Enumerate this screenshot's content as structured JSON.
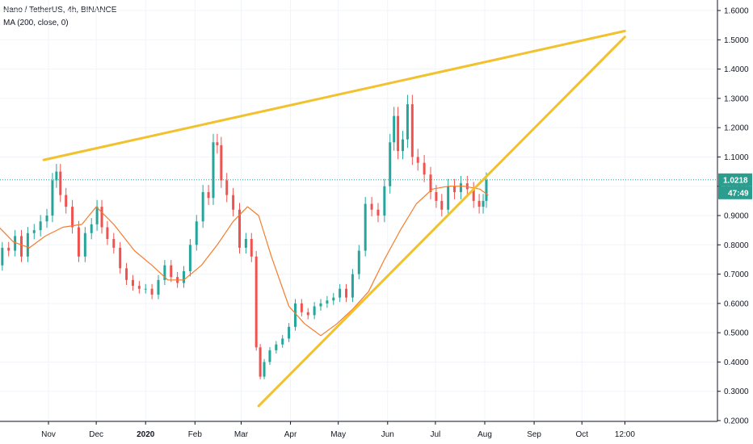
{
  "header": {
    "symbol_line": "Nano / TetherUS, 4h, BINANCE",
    "indicator_line": "MA (200, close, 0)"
  },
  "price_label": "1.0218",
  "countdown_label": "47:49",
  "colors": {
    "up": "#26a69a",
    "down": "#ef5350",
    "ma": "#f57c2b",
    "trendline": "#f2c12e",
    "last_price": "#2a9d8f",
    "axis": "#131722",
    "grid": "#f0f3fa"
  },
  "chart_data": {
    "type": "line",
    "title": "Nano / TetherUS, 4h, BINANCE",
    "xlabel": "",
    "ylabel": "",
    "ylim": [
      0.2,
      1.6
    ],
    "y_ticks": [
      "1.6000",
      "1.5000",
      "1.4000",
      "1.3000",
      "1.2000",
      "1.1000",
      "1.0000",
      "0.9000",
      "0.8000",
      "0.7000",
      "0.6000",
      "0.5000",
      "0.4000",
      "0.3000",
      "0.2000"
    ],
    "x_ticks": [
      {
        "label": "Nov",
        "date": "2019-11-01"
      },
      {
        "label": "Dec",
        "date": "2019-12-01"
      },
      {
        "label": "2020",
        "date": "2020-01-01",
        "bold": true
      },
      {
        "label": "Feb",
        "date": "2020-02-01"
      },
      {
        "label": "Mar",
        "date": "2020-03-01"
      },
      {
        "label": "Apr",
        "date": "2020-04-01"
      },
      {
        "label": "May",
        "date": "2020-05-01"
      },
      {
        "label": "Jun",
        "date": "2020-06-01"
      },
      {
        "label": "Jul",
        "date": "2020-07-01"
      },
      {
        "label": "Aug",
        "date": "2020-08-01"
      },
      {
        "label": "Sep",
        "date": "2020-09-01"
      },
      {
        "label": "Oct",
        "date": "2020-10-01"
      },
      {
        "label": "12:00",
        "date": "2020-10-28"
      }
    ],
    "last_price": 1.0218,
    "series": [
      {
        "name": "Nano / TetherUS, 4h, BINANCE",
        "kind": "price",
        "points": [
          [
            "2019-10-01",
            0.73
          ],
          [
            "2019-10-05",
            0.79
          ],
          [
            "2019-10-09",
            0.78
          ],
          [
            "2019-10-13",
            0.83
          ],
          [
            "2019-10-17",
            0.76
          ],
          [
            "2019-10-21",
            0.84
          ],
          [
            "2019-10-25",
            0.85
          ],
          [
            "2019-10-29",
            0.88
          ],
          [
            "2019-11-02",
            0.9
          ],
          [
            "2019-11-05",
            1.02
          ],
          [
            "2019-11-07",
            1.05
          ],
          [
            "2019-11-10",
            0.97
          ],
          [
            "2019-11-14",
            0.93
          ],
          [
            "2019-11-18",
            0.86
          ],
          [
            "2019-11-22",
            0.76
          ],
          [
            "2019-11-26",
            0.84
          ],
          [
            "2019-11-30",
            0.87
          ],
          [
            "2019-12-03",
            0.93
          ],
          [
            "2019-12-06",
            0.86
          ],
          [
            "2019-12-10",
            0.82
          ],
          [
            "2019-12-14",
            0.79
          ],
          [
            "2019-12-18",
            0.72
          ],
          [
            "2019-12-22",
            0.68
          ],
          [
            "2019-12-26",
            0.66
          ],
          [
            "2019-12-30",
            0.65
          ],
          [
            "2020-01-03",
            0.65
          ],
          [
            "2020-01-07",
            0.63
          ],
          [
            "2020-01-11",
            0.68
          ],
          [
            "2020-01-15",
            0.73
          ],
          [
            "2020-01-19",
            0.69
          ],
          [
            "2020-01-23",
            0.67
          ],
          [
            "2020-01-27",
            0.71
          ],
          [
            "2020-01-31",
            0.8
          ],
          [
            "2020-02-04",
            0.88
          ],
          [
            "2020-02-08",
            0.98
          ],
          [
            "2020-02-11",
            0.96
          ],
          [
            "2020-02-14",
            1.15
          ],
          [
            "2020-02-16",
            1.14
          ],
          [
            "2020-02-19",
            1.02
          ],
          [
            "2020-02-23",
            0.97
          ],
          [
            "2020-02-27",
            0.92
          ],
          [
            "2020-03-02",
            0.79
          ],
          [
            "2020-03-06",
            0.82
          ],
          [
            "2020-03-09",
            0.76
          ],
          [
            "2020-03-12",
            0.45
          ],
          [
            "2020-03-14",
            0.35
          ],
          [
            "2020-03-17",
            0.4
          ],
          [
            "2020-03-21",
            0.44
          ],
          [
            "2020-03-25",
            0.46
          ],
          [
            "2020-03-29",
            0.48
          ],
          [
            "2020-04-02",
            0.52
          ],
          [
            "2020-04-06",
            0.6
          ],
          [
            "2020-04-10",
            0.57
          ],
          [
            "2020-04-14",
            0.56
          ],
          [
            "2020-04-18",
            0.59
          ],
          [
            "2020-04-22",
            0.6
          ],
          [
            "2020-04-26",
            0.61
          ],
          [
            "2020-04-30",
            0.62
          ],
          [
            "2020-05-04",
            0.65
          ],
          [
            "2020-05-08",
            0.62
          ],
          [
            "2020-05-12",
            0.7
          ],
          [
            "2020-05-16",
            0.78
          ],
          [
            "2020-05-20",
            0.94
          ],
          [
            "2020-05-24",
            0.92
          ],
          [
            "2020-05-28",
            0.9
          ],
          [
            "2020-06-01",
            1.0
          ],
          [
            "2020-06-04",
            1.15
          ],
          [
            "2020-06-06",
            1.24
          ],
          [
            "2020-06-09",
            1.12
          ],
          [
            "2020-06-12",
            1.16
          ],
          [
            "2020-06-15",
            1.28
          ],
          [
            "2020-06-18",
            1.1
          ],
          [
            "2020-06-22",
            1.08
          ],
          [
            "2020-06-26",
            1.04
          ],
          [
            "2020-06-30",
            0.98
          ],
          [
            "2020-07-03",
            0.95
          ],
          [
            "2020-07-07",
            0.92
          ],
          [
            "2020-07-11",
            1.0
          ],
          [
            "2020-07-15",
            0.98
          ],
          [
            "2020-07-19",
            1.01
          ],
          [
            "2020-07-23",
            0.99
          ],
          [
            "2020-07-27",
            0.95
          ],
          [
            "2020-07-30",
            0.93
          ],
          [
            "2020-08-01",
            0.95
          ],
          [
            "2020-08-03",
            1.0218
          ]
        ]
      },
      {
        "name": "MA (200, close, 0)",
        "kind": "moving_average",
        "points": [
          [
            "2019-10-01",
            0.86
          ],
          [
            "2019-10-10",
            0.81
          ],
          [
            "2019-10-20",
            0.79
          ],
          [
            "2019-10-30",
            0.83
          ],
          [
            "2019-11-10",
            0.86
          ],
          [
            "2019-11-22",
            0.87
          ],
          [
            "2019-12-01",
            0.93
          ],
          [
            "2019-12-12",
            0.87
          ],
          [
            "2019-12-25",
            0.78
          ],
          [
            "2020-01-05",
            0.73
          ],
          [
            "2020-01-15",
            0.68
          ],
          [
            "2020-01-25",
            0.68
          ],
          [
            "2020-02-05",
            0.73
          ],
          [
            "2020-02-15",
            0.8
          ],
          [
            "2020-02-25",
            0.88
          ],
          [
            "2020-03-05",
            0.93
          ],
          [
            "2020-03-12",
            0.9
          ],
          [
            "2020-03-20",
            0.76
          ],
          [
            "2020-03-31",
            0.59
          ],
          [
            "2020-04-10",
            0.53
          ],
          [
            "2020-04-20",
            0.49
          ],
          [
            "2020-04-30",
            0.53
          ],
          [
            "2020-05-10",
            0.58
          ],
          [
            "2020-05-20",
            0.64
          ],
          [
            "2020-05-30",
            0.75
          ],
          [
            "2020-06-09",
            0.85
          ],
          [
            "2020-06-19",
            0.94
          ],
          [
            "2020-06-29",
            0.99
          ],
          [
            "2020-07-09",
            1.0
          ],
          [
            "2020-07-19",
            1.0
          ],
          [
            "2020-07-29",
            0.99
          ],
          [
            "2020-08-03",
            0.97
          ]
        ]
      },
      {
        "name": "",
        "kind": "trendline",
        "points": [
          [
            "2019-10-29",
            1.09
          ],
          [
            "2020-10-28",
            1.53
          ]
        ]
      },
      {
        "name": "",
        "kind": "trendline",
        "points": [
          [
            "2020-03-12",
            0.25
          ],
          [
            "2020-10-28",
            1.51
          ]
        ]
      }
    ]
  }
}
